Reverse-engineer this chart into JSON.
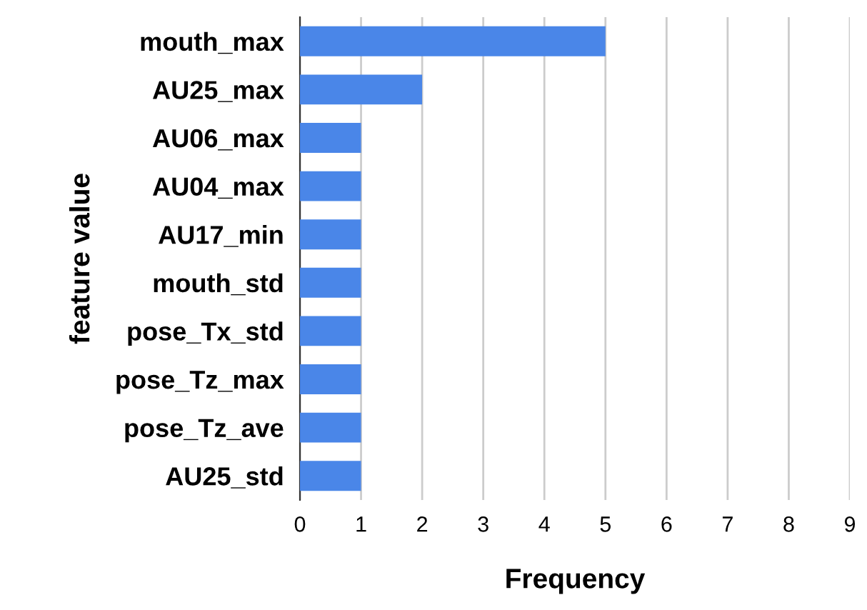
{
  "chart_data": {
    "type": "bar",
    "orientation": "horizontal",
    "categories": [
      "mouth_max",
      "AU25_max",
      "AU06_max",
      "AU04_max",
      "AU17_min",
      "mouth_std",
      "pose_Tx_std",
      "pose_Tz_max",
      "pose_Tz_ave",
      "AU25_std"
    ],
    "values": [
      5,
      2,
      1,
      1,
      1,
      1,
      1,
      1,
      1,
      1
    ],
    "color": "#4a86e8",
    "xlim": [
      0,
      9
    ],
    "xticks": [
      0,
      1,
      2,
      3,
      4,
      5,
      6,
      7,
      8,
      9
    ],
    "xlabel": "Frequency",
    "ylabel": "feature value",
    "grid": "x",
    "legend": false
  }
}
